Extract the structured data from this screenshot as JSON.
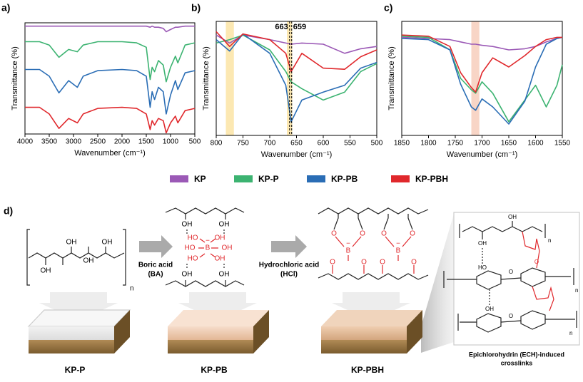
{
  "chart_data": [
    {
      "type": "line",
      "label": "a)",
      "xlabel": "Wavenumber (cm⁻¹)",
      "ylabel": "Transmittance (%)",
      "x": [
        4000,
        3700,
        3500,
        3300,
        3100,
        2920,
        2800,
        2500,
        2000,
        1700,
        1500,
        1420,
        1380,
        1330,
        1250,
        1150,
        1090,
        1000,
        900,
        850,
        700,
        500
      ],
      "xlim": [
        4000,
        500
      ],
      "xticks": [
        4000,
        3500,
        3000,
        2500,
        2000,
        1500,
        1000,
        500
      ],
      "ylim": [
        0,
        100
      ],
      "series": [
        {
          "name": "KP",
          "color": "#9b59b6",
          "values": [
            97,
            97,
            97,
            97,
            97,
            97,
            97,
            97,
            97,
            97,
            97,
            96,
            97,
            96,
            96,
            95,
            92,
            94,
            96,
            96,
            97,
            97
          ]
        },
        {
          "name": "KP-P",
          "color": "#3cb371",
          "values": [
            83,
            83,
            80,
            69,
            76,
            74,
            80,
            83,
            83,
            82,
            78,
            49,
            60,
            56,
            66,
            62,
            47,
            60,
            70,
            64,
            80,
            82
          ]
        },
        {
          "name": "KP-PB",
          "color": "#2a6db5",
          "values": [
            58,
            58,
            52,
            37,
            48,
            42,
            52,
            57,
            58,
            57,
            52,
            24,
            38,
            31,
            42,
            38,
            18,
            35,
            48,
            40,
            55,
            57
          ]
        },
        {
          "name": "KP-PBH",
          "color": "#e0282c",
          "values": [
            24,
            24,
            18,
            5,
            14,
            10,
            18,
            23,
            24,
            23,
            18,
            4,
            12,
            8,
            14,
            12,
            1,
            10,
            16,
            10,
            21,
            23
          ]
        }
      ]
    },
    {
      "type": "line",
      "label": "b)",
      "xlabel": "Wavenumber (cm⁻¹)",
      "ylabel": "Transmittance (%)",
      "x": [
        800,
        775,
        750,
        700,
        670,
        660,
        640,
        600,
        560,
        530,
        500
      ],
      "xlim": [
        800,
        500
      ],
      "xticks": [
        800,
        750,
        700,
        650,
        600,
        550,
        500
      ],
      "ylim": [
        0,
        100
      ],
      "bands": [
        [
          782,
          767
        ],
        [
          668,
          658
        ]
      ],
      "band_color": "#fce8b2",
      "annotations": [
        {
          "x": 663,
          "text": "663"
        },
        {
          "x": 659,
          "text": "659"
        }
      ],
      "series": [
        {
          "color": "#9b59b6",
          "values": [
            88,
            81,
            88,
            84,
            81,
            80,
            81,
            80,
            72,
            76,
            78
          ]
        },
        {
          "color": "#3cb371",
          "values": [
            81,
            84,
            88,
            75,
            56,
            47,
            41,
            31,
            38,
            56,
            63
          ]
        },
        {
          "color": "#2a6db5",
          "values": [
            84,
            74,
            89,
            72,
            44,
            12,
            31,
            38,
            44,
            59,
            64
          ]
        },
        {
          "color": "#e0282c",
          "values": [
            91,
            78,
            89,
            84,
            72,
            56,
            72,
            59,
            58,
            69,
            75
          ]
        }
      ]
    },
    {
      "type": "line",
      "label": "c)",
      "xlabel": "Wavenumber (cm⁻¹)",
      "ylabel": "Transmittance (%)",
      "x": [
        1850,
        1800,
        1760,
        1740,
        1720,
        1712,
        1700,
        1680,
        1650,
        1620,
        1600,
        1580,
        1560,
        1550
      ],
      "xlim": [
        1850,
        1550
      ],
      "xticks": [
        1850,
        1800,
        1750,
        1700,
        1650,
        1600,
        1550
      ],
      "ylim": [
        0,
        100
      ],
      "bands": [
        [
          1720,
          1705
        ]
      ],
      "band_color": "#f8d5c6",
      "series": [
        {
          "color": "#9b59b6",
          "values": [
            86,
            85,
            84,
            82,
            80,
            80,
            79,
            78,
            75,
            76,
            78,
            82,
            85,
            86
          ]
        },
        {
          "color": "#3cb371",
          "values": [
            87,
            86,
            75,
            50,
            40,
            37,
            47,
            37,
            12,
            31,
            44,
            25,
            44,
            62
          ]
        },
        {
          "color": "#2a6db5",
          "values": [
            85,
            84,
            75,
            45,
            25,
            22,
            32,
            25,
            10,
            30,
            60,
            80,
            85,
            86
          ]
        },
        {
          "color": "#e0282c",
          "values": [
            88,
            87,
            78,
            55,
            42,
            38,
            55,
            68,
            60,
            70,
            78,
            84,
            86,
            86
          ]
        }
      ]
    }
  ],
  "diagram": {
    "label": "d)",
    "reagents": [
      [
        "Boric acid",
        "(BA)"
      ],
      [
        "Hydrochloric acid",
        "(HCl)"
      ]
    ],
    "samples": [
      "KP-P",
      "KP-PB",
      "KP-PBH"
    ],
    "crosslink_caption": [
      "Epichlorohydrin (ECH)-induced",
      "crosslinks"
    ],
    "pva_labels": [
      "OH",
      "OH",
      "OH",
      "OH",
      "n"
    ],
    "borate_labels": [
      "OH",
      "OH",
      "HO",
      "OH",
      "HO",
      "B",
      "OH",
      "HO",
      "OH",
      "OH",
      "OH",
      "−"
    ],
    "ester_labels": [
      "O",
      "O",
      "B",
      "O",
      "O",
      "O",
      "O",
      "B",
      "O",
      "O",
      "−",
      "−"
    ],
    "ech_labels": [
      "OH",
      "OH",
      "n",
      "HO",
      "O",
      "O",
      "n",
      "OH",
      "O",
      "n"
    ]
  }
}
